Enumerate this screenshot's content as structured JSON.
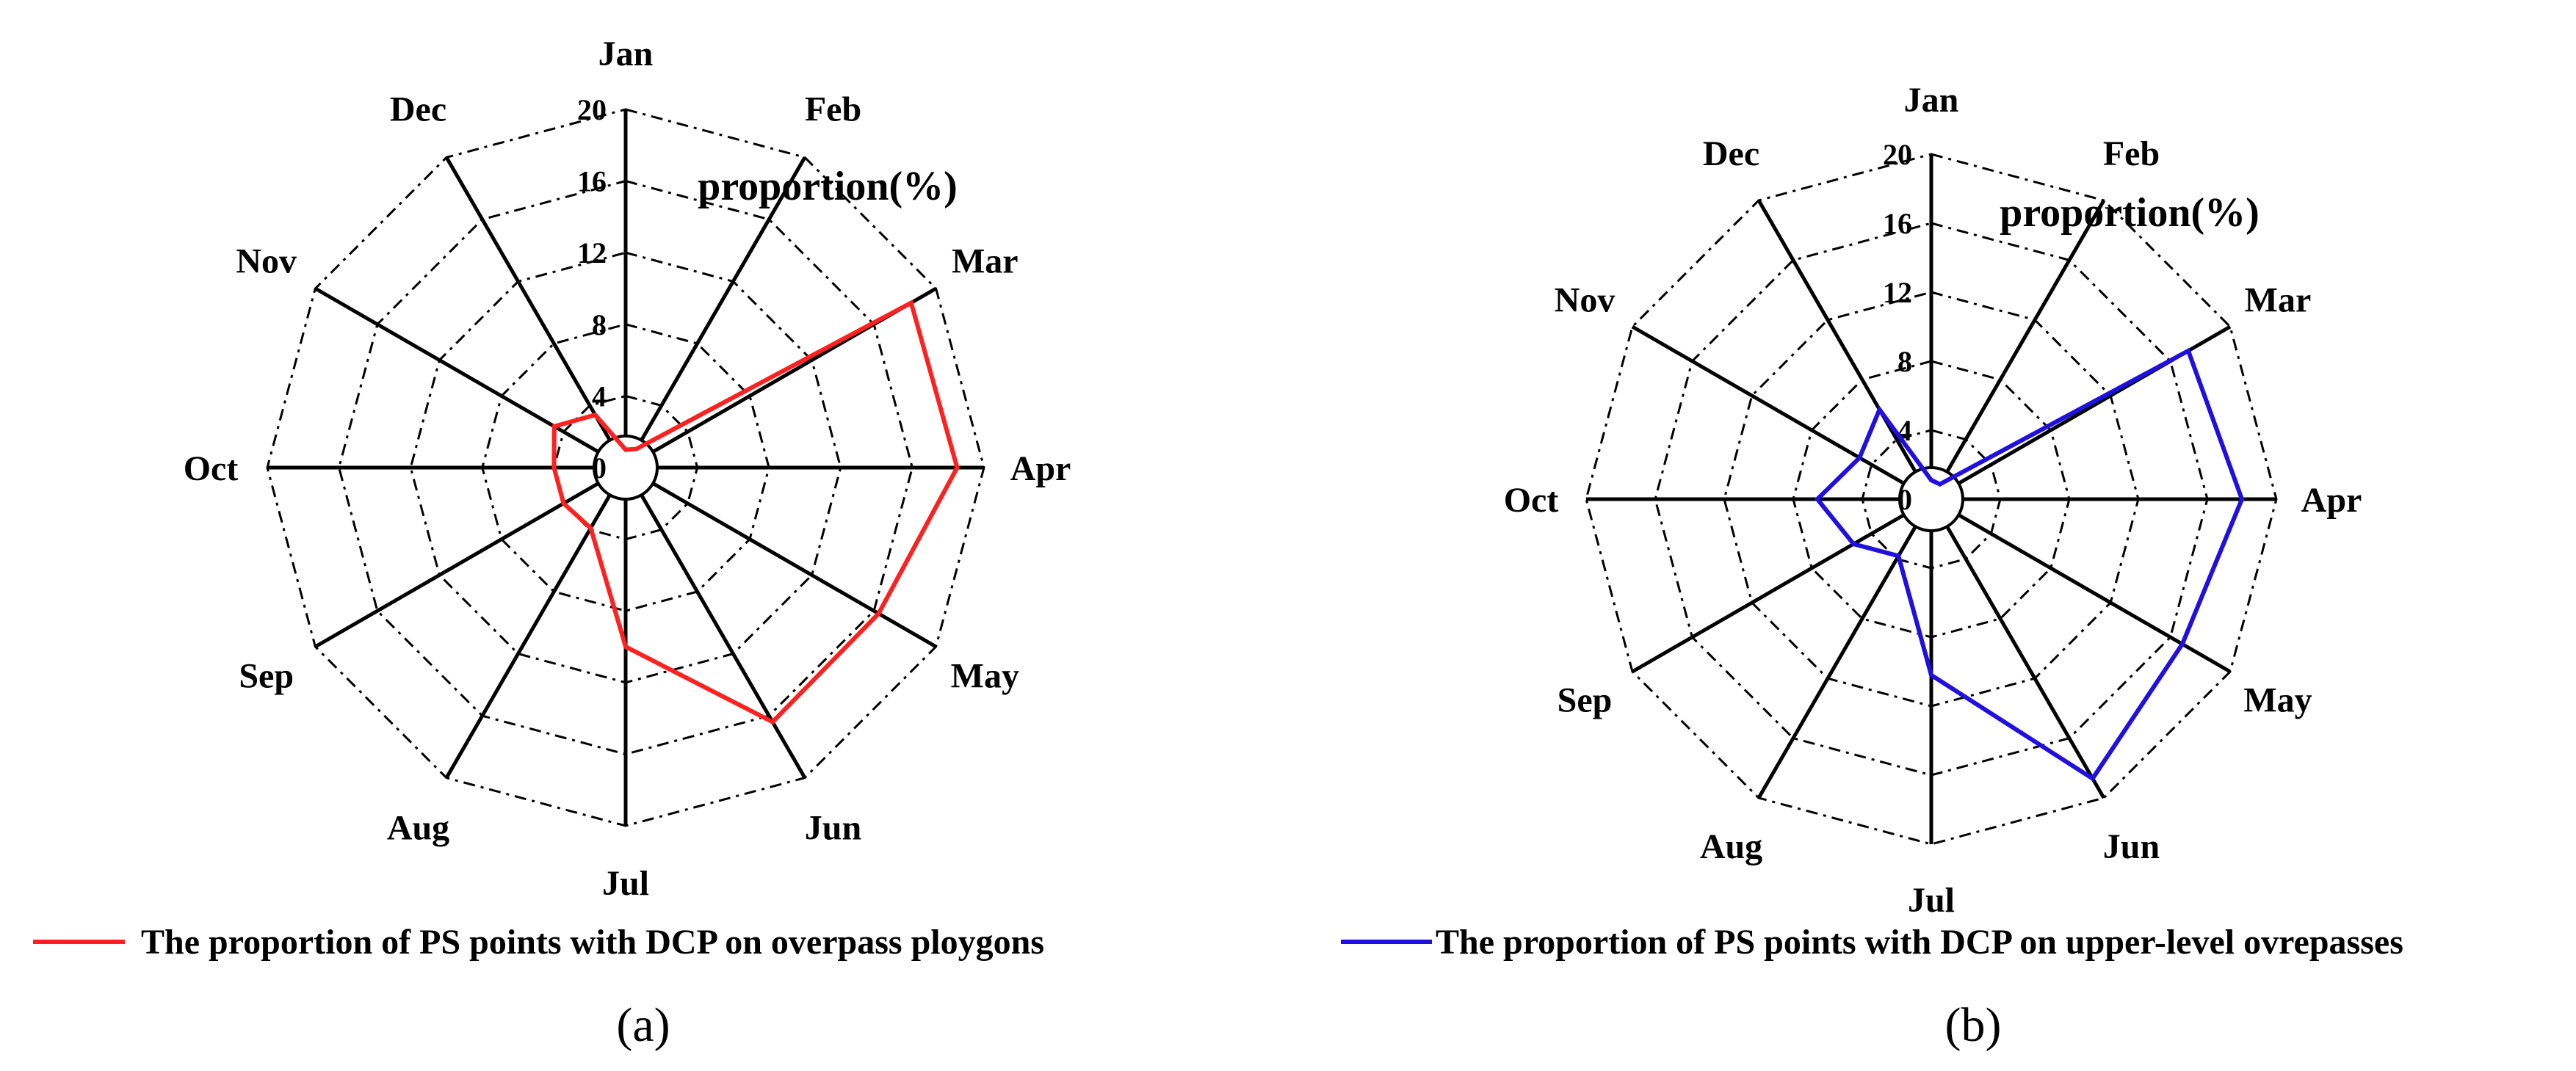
{
  "chart_data": [
    {
      "type": "radar",
      "panel_label": "(a)",
      "radial_label": "proportion(%)",
      "categories": [
        "Jan",
        "Feb",
        "Mar",
        "Apr",
        "May",
        "Jun",
        "Jul",
        "Aug",
        "Sep",
        "Oct",
        "Nov",
        "Dec"
      ],
      "rlim": [
        0,
        20
      ],
      "rticks": [
        "0",
        "4",
        "8",
        "12",
        "16",
        "20"
      ],
      "series": [
        {
          "name": "The proportion of PS points with DCP on overpass ploygons",
          "color": "#ff2020",
          "values": [
            1.0,
            1.2,
            18.4,
            18.5,
            16.3,
            16.4,
            10.0,
            3.9,
            4.0,
            4.0,
            4.6,
            3.4
          ]
        }
      ],
      "grid": "dash-dot polygons",
      "legend_position": "bottom"
    },
    {
      "type": "radar",
      "panel_label": "(b)",
      "radial_label": "proportion(%)",
      "categories": [
        "Jan",
        "Feb",
        "Mar",
        "Apr",
        "May",
        "Jun",
        "Jul",
        "Aug",
        "Sep",
        "Oct",
        "Nov",
        "Dec"
      ],
      "rlim": [
        0,
        20
      ],
      "rticks": [
        "0",
        "4",
        "8",
        "12",
        "16",
        "20"
      ],
      "series": [
        {
          "name": "The proportion of PS points with DCP on upper-level ovrepasses",
          "color": "#2010e0",
          "values": [
            1.1,
            1.0,
            17.2,
            18.0,
            16.8,
            18.7,
            10.2,
            3.8,
            5.2,
            6.6,
            4.8,
            6.0
          ]
        }
      ],
      "grid": "dash-dot polygons",
      "legend_position": "bottom"
    }
  ]
}
